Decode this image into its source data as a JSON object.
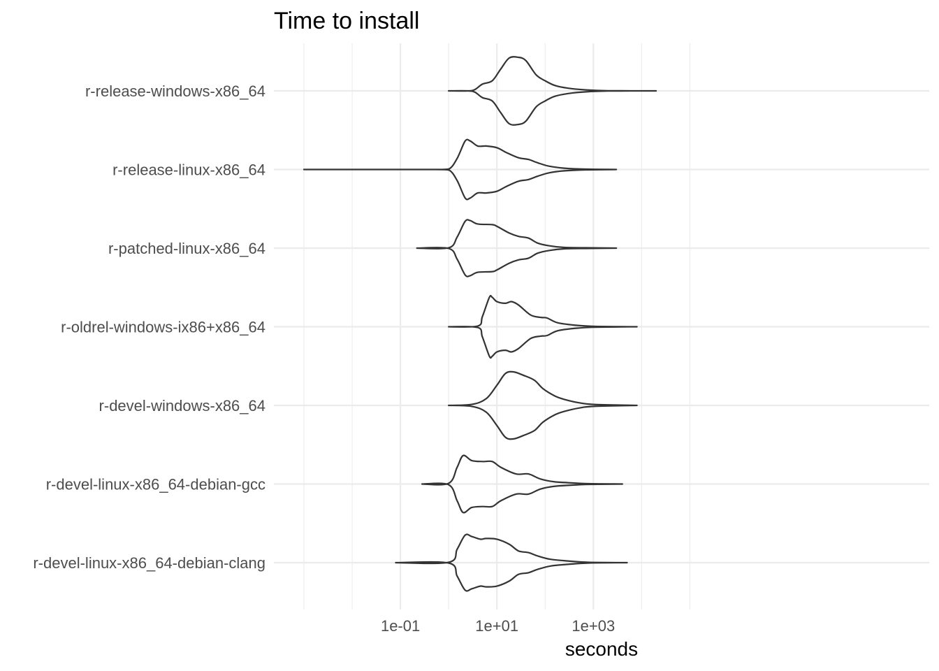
{
  "chart_data": {
    "type": "violin",
    "title": "Time to install",
    "xlabel": "seconds",
    "ylabel": "",
    "x_scale": "log10",
    "xlim": [
      0.001,
      100000
    ],
    "x_ticks": [
      {
        "value": 0.1,
        "label": "1e-01"
      },
      {
        "value": 10,
        "label": "1e+01"
      },
      {
        "value": 1000,
        "label": "1e+03"
      }
    ],
    "grid": true,
    "categories": [
      "r-release-windows-x86_64",
      "r-release-linux-x86_64",
      "r-patched-linux-x86_64",
      "r-oldrel-windows-ix86+x86_64",
      "r-devel-windows-x86_64",
      "r-devel-linux-x86_64-debian-gcc",
      "r-devel-linux-x86_64-debian-clang"
    ],
    "series": [
      {
        "category": "r-release-windows-x86_64",
        "min": 1.0,
        "max": 20000,
        "density": [
          [
            1.0,
            0
          ],
          [
            2.5,
            0
          ],
          [
            3.5,
            0.04
          ],
          [
            5,
            0.2
          ],
          [
            8,
            0.3
          ],
          [
            12,
            0.65
          ],
          [
            18,
            0.98
          ],
          [
            28,
            1.0
          ],
          [
            40,
            0.9
          ],
          [
            65,
            0.48
          ],
          [
            100,
            0.3
          ],
          [
            160,
            0.16
          ],
          [
            300,
            0.08
          ],
          [
            700,
            0.03
          ],
          [
            2000,
            0.005
          ],
          [
            20000,
            0
          ]
        ]
      },
      {
        "category": "r-release-linux-x86_64",
        "min": 0.001,
        "max": 3000,
        "density": [
          [
            0.001,
            0
          ],
          [
            0.5,
            0
          ],
          [
            1.0,
            0.01
          ],
          [
            1.5,
            0.33
          ],
          [
            2.2,
            0.85
          ],
          [
            2.8,
            0.85
          ],
          [
            4,
            0.7
          ],
          [
            6,
            0.7
          ],
          [
            10,
            0.65
          ],
          [
            16,
            0.5
          ],
          [
            28,
            0.35
          ],
          [
            45,
            0.3
          ],
          [
            70,
            0.2
          ],
          [
            120,
            0.1
          ],
          [
            250,
            0.04
          ],
          [
            700,
            0.01
          ],
          [
            3000,
            0
          ]
        ]
      },
      {
        "category": "r-patched-linux-x86_64",
        "min": 0.22,
        "max": 3000,
        "density": [
          [
            0.22,
            0
          ],
          [
            1.0,
            0.01
          ],
          [
            1.5,
            0.33
          ],
          [
            2.2,
            0.8
          ],
          [
            2.8,
            0.82
          ],
          [
            4,
            0.72
          ],
          [
            8,
            0.7
          ],
          [
            10,
            0.65
          ],
          [
            18,
            0.45
          ],
          [
            28,
            0.35
          ],
          [
            45,
            0.3
          ],
          [
            70,
            0.15
          ],
          [
            120,
            0.07
          ],
          [
            250,
            0.02
          ],
          [
            700,
            0.01
          ],
          [
            3000,
            0
          ]
        ]
      },
      {
        "category": "r-oldrel-windows-ix86+x86_64",
        "min": 1.0,
        "max": 8000,
        "density": [
          [
            1.0,
            0
          ],
          [
            4,
            0.02
          ],
          [
            5,
            0.3
          ],
          [
            7,
            0.88
          ],
          [
            8,
            0.88
          ],
          [
            10,
            0.75
          ],
          [
            15,
            0.7
          ],
          [
            20,
            0.75
          ],
          [
            28,
            0.65
          ],
          [
            50,
            0.35
          ],
          [
            80,
            0.28
          ],
          [
            110,
            0.26
          ],
          [
            180,
            0.12
          ],
          [
            400,
            0.05
          ],
          [
            1000,
            0.015
          ],
          [
            8000,
            0
          ]
        ]
      },
      {
        "category": "r-devel-windows-x86_64",
        "min": 1.0,
        "max": 8000,
        "density": [
          [
            1.0,
            0
          ],
          [
            3,
            0.03
          ],
          [
            6,
            0.2
          ],
          [
            10,
            0.6
          ],
          [
            15,
            0.95
          ],
          [
            22,
            1.0
          ],
          [
            35,
            0.9
          ],
          [
            60,
            0.75
          ],
          [
            90,
            0.5
          ],
          [
            160,
            0.28
          ],
          [
            250,
            0.18
          ],
          [
            500,
            0.08
          ],
          [
            1000,
            0.03
          ],
          [
            8000,
            0
          ]
        ]
      },
      {
        "category": "r-devel-linux-x86_64-debian-gcc",
        "min": 0.28,
        "max": 4000,
        "density": [
          [
            0.28,
            0
          ],
          [
            1.0,
            0.02
          ],
          [
            1.5,
            0.5
          ],
          [
            2.0,
            0.85
          ],
          [
            3,
            0.7
          ],
          [
            5,
            0.67
          ],
          [
            8,
            0.67
          ],
          [
            12,
            0.5
          ],
          [
            25,
            0.3
          ],
          [
            45,
            0.3
          ],
          [
            80,
            0.15
          ],
          [
            150,
            0.07
          ],
          [
            300,
            0.04
          ],
          [
            800,
            0.01
          ],
          [
            4000,
            0
          ]
        ]
      },
      {
        "category": "r-devel-linux-x86_64-debian-clang",
        "min": 0.08,
        "max": 5000,
        "density": [
          [
            0.08,
            0
          ],
          [
            1.0,
            0.01
          ],
          [
            1.5,
            0.4
          ],
          [
            2.2,
            0.82
          ],
          [
            3,
            0.78
          ],
          [
            4.5,
            0.7
          ],
          [
            6,
            0.72
          ],
          [
            10,
            0.7
          ],
          [
            18,
            0.55
          ],
          [
            28,
            0.35
          ],
          [
            45,
            0.3
          ],
          [
            70,
            0.2
          ],
          [
            130,
            0.1
          ],
          [
            300,
            0.05
          ],
          [
            800,
            0.01
          ],
          [
            5000,
            0
          ]
        ]
      }
    ]
  }
}
